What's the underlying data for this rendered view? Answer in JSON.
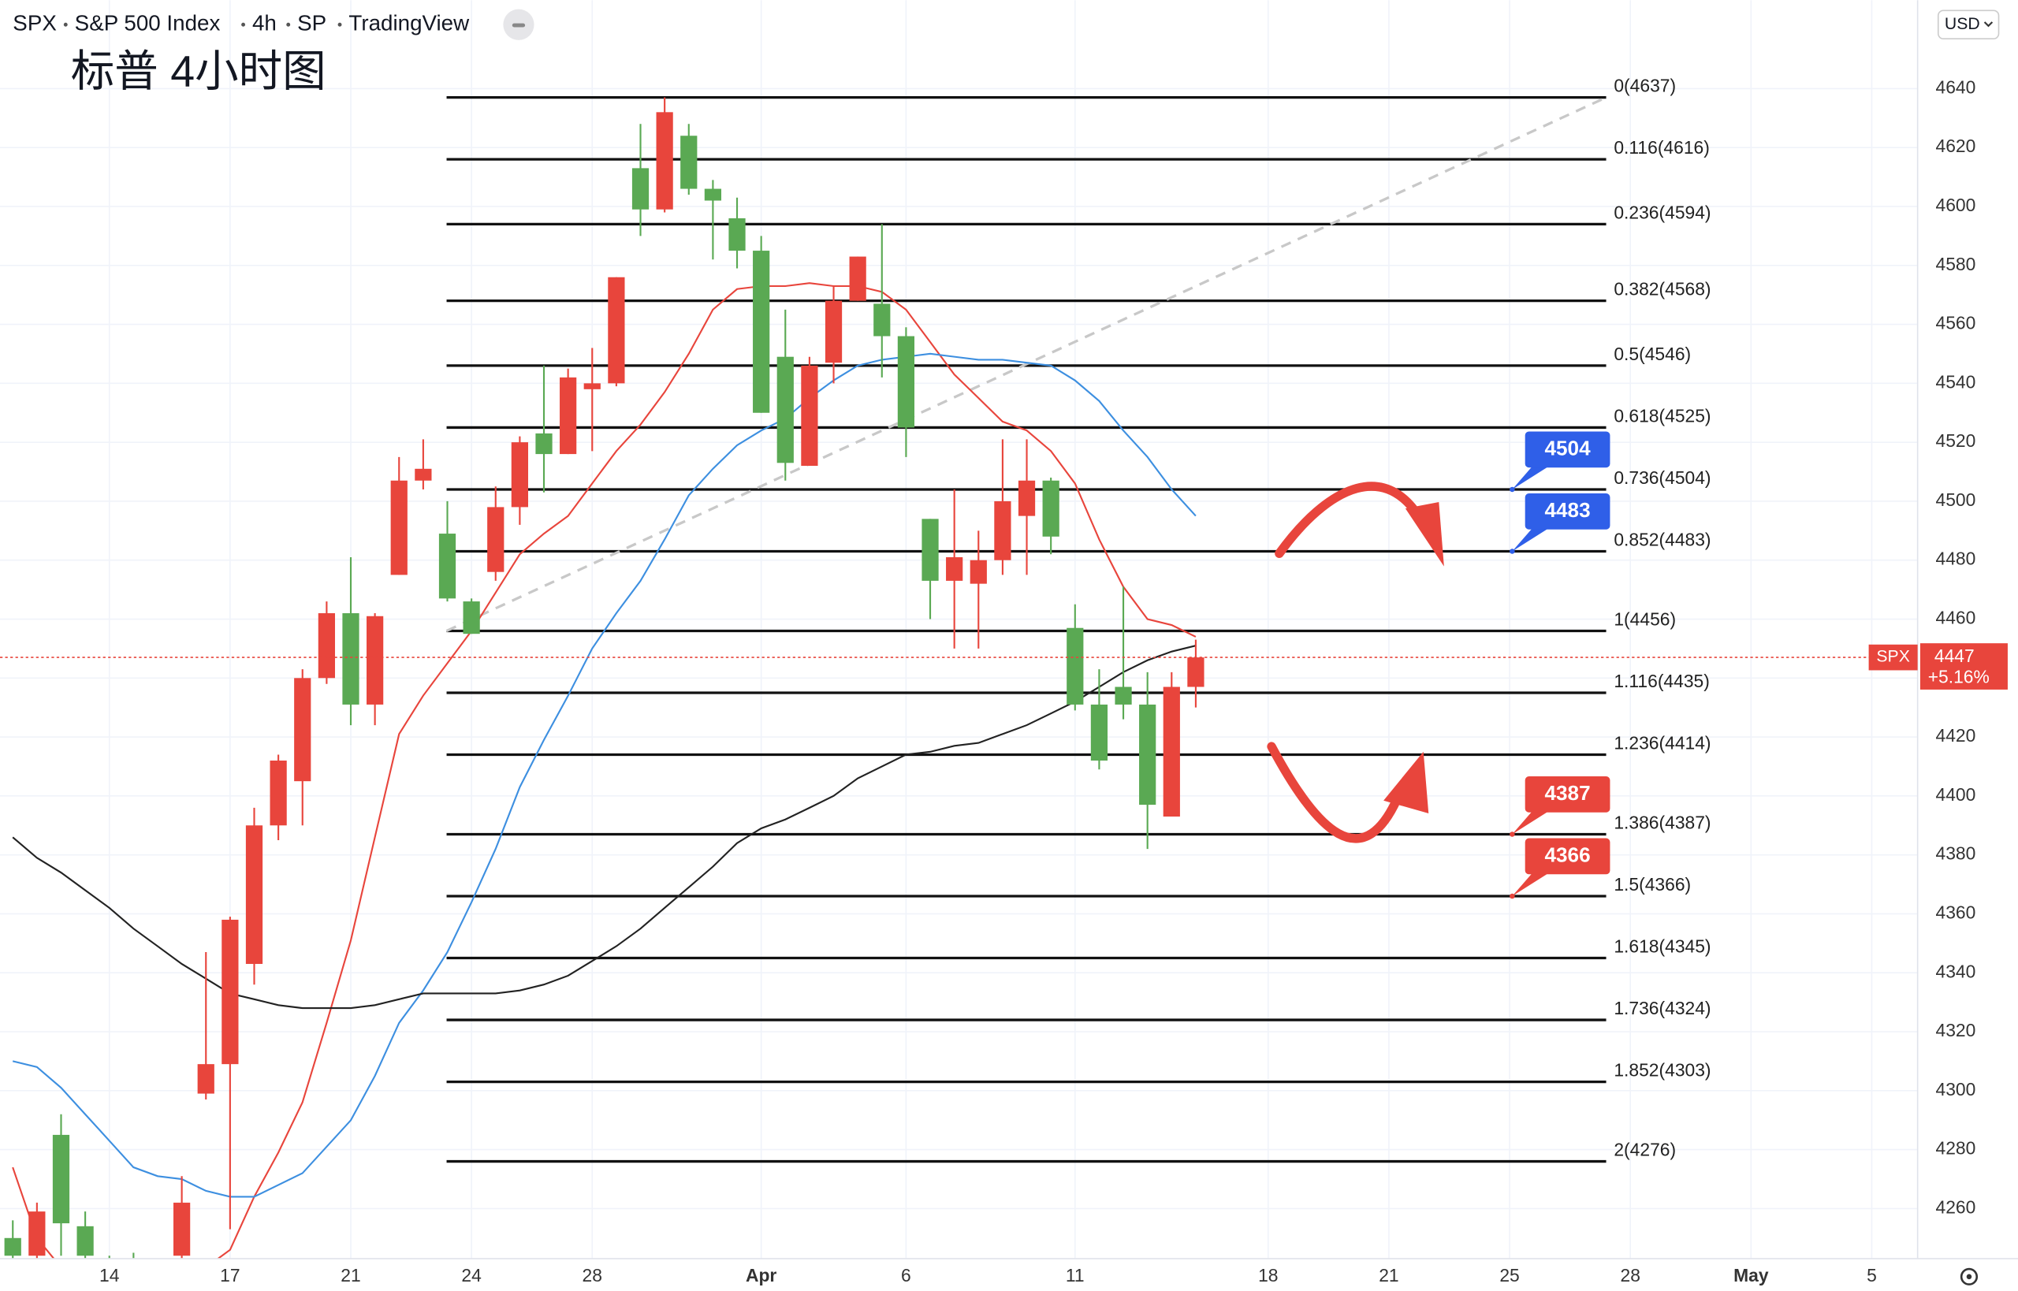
{
  "header": {
    "symbol": "SPX",
    "name": "S&P 500 Index",
    "interval": "4h",
    "exchange": "SP",
    "source": "TradingView",
    "currency": "USD"
  },
  "chart_data": {
    "type": "candlestick",
    "title": "标普 4小时图",
    "open": [
      4250,
      4244,
      4285,
      4254,
      4243,
      4242,
      4241,
      4244,
      4299,
      4309,
      4343,
      4390,
      4405,
      4440,
      4462,
      4431,
      4475,
      4507,
      4489,
      4466,
      4476,
      4498,
      4523,
      4516,
      4538,
      4540,
      4613,
      4599,
      4624,
      4606,
      4596,
      4585,
      4549,
      4512,
      4547,
      4568,
      4567,
      4556,
      4494,
      4473,
      4472,
      4480,
      4495,
      4507,
      4457,
      4431,
      4437,
      4431,
      4393,
      4437
    ],
    "high": [
      4256,
      4262,
      4292,
      4259,
      4244,
      4245,
      4243,
      4271,
      4347,
      4359,
      4396,
      4414,
      4443,
      4466,
      4481,
      4462,
      4515,
      4521,
      4500,
      4467,
      4505,
      4522,
      4546,
      4545,
      4552,
      4576,
      4628,
      4637,
      4628,
      4609,
      4603,
      4590,
      4565,
      4549,
      4573,
      4583,
      4594,
      4559,
      4494,
      4504,
      4490,
      4521,
      4521,
      4508,
      4465,
      4443,
      4471,
      4442,
      4442,
      4453
    ],
    "low": [
      4240,
      4240,
      4244,
      4240,
      4238,
      4238,
      4237,
      4240,
      4297,
      4253,
      4336,
      4385,
      4390,
      4438,
      4424,
      4424,
      4475,
      4504,
      4466,
      4455,
      4473,
      4492,
      4503,
      4516,
      4517,
      4539,
      4590,
      4598,
      4604,
      4582,
      4579,
      4530,
      4507,
      4512,
      4540,
      4568,
      4542,
      4515,
      4460,
      4450,
      4450,
      4475,
      4475,
      4482,
      4429,
      4409,
      4426,
      4382,
      4393,
      4430
    ],
    "close": [
      4244,
      4259,
      4255,
      4244,
      4241,
      4240,
      4239,
      4262,
      4309,
      4358,
      4390,
      4412,
      4440,
      4462,
      4431,
      4461,
      4507,
      4511,
      4467,
      4455,
      4498,
      4520,
      4516,
      4542,
      4540,
      4576,
      4599,
      4632,
      4606,
      4602,
      4585,
      4530,
      4513,
      4546,
      4568,
      4583,
      4556,
      4525,
      4473,
      4481,
      4480,
      4500,
      4507,
      4488,
      4431,
      4412,
      4431,
      4397,
      4437,
      4447
    ],
    "up_color": "#e8453c",
    "down_color": "#5aa953",
    "lines": [
      {
        "color": "#e8453c",
        "values": [
          4274,
          4250,
          4240,
          4234,
          4230,
          4228,
          4228,
          4232,
          4240,
          4246,
          4264,
          4279,
          4296,
          4323,
          4351,
          4386,
          4421,
          4434,
          4445,
          4456,
          4469,
          4482,
          4489,
          4495,
          4506,
          4517,
          4526,
          4537,
          4550,
          4565,
          4572,
          4573,
          4573,
          4574,
          4573,
          4573,
          4571,
          4565,
          4554,
          4543,
          4535,
          4527,
          4524,
          4517,
          4506,
          4487,
          4471,
          4460,
          4458,
          4454
        ]
      },
      {
        "color": "#3d8fe0",
        "values": [
          4310,
          4308,
          4301,
          4292,
          4283,
          4274,
          4271,
          4270,
          4266,
          4264,
          4264,
          4268,
          4272,
          4281,
          4290,
          4305,
          4323,
          4334,
          4347,
          4364,
          4382,
          4403,
          4419,
          4434,
          4450,
          4462,
          4473,
          4487,
          4502,
          4511,
          4519,
          4524,
          4528,
          4535,
          4541,
          4546,
          4548,
          4549,
          4550,
          4549,
          4548,
          4548,
          4547,
          4546,
          4541,
          4534,
          4524,
          4515,
          4504,
          4495
        ]
      },
      {
        "color": "#222222",
        "values": [
          4386,
          4379,
          4374,
          4368,
          4362,
          4355,
          4349,
          4343,
          4338,
          4333,
          4331,
          4329,
          4328,
          4328,
          4328,
          4329,
          4331,
          4333,
          4333,
          4333,
          4333,
          4334,
          4336,
          4339,
          4344,
          4349,
          4355,
          4362,
          4369,
          4376,
          4384,
          4389,
          4392,
          4396,
          4400,
          4406,
          4410,
          4414,
          4415,
          4417,
          4418,
          4421,
          4424,
          4428,
          4432,
          4437,
          4442,
          4446,
          4449,
          4451
        ]
      }
    ],
    "xlim": [
      -0.53,
      78.9
    ],
    "xticks": [
      {
        "value": 4,
        "label": "14"
      },
      {
        "value": 9,
        "label": "17"
      },
      {
        "value": 14,
        "label": "21"
      },
      {
        "value": 19,
        "label": "24"
      },
      {
        "value": 24,
        "label": "28"
      },
      {
        "value": 31,
        "label": "Apr"
      },
      {
        "value": 37,
        "label": "6"
      },
      {
        "value": 44,
        "label": "11"
      },
      {
        "value": 52,
        "label": "18"
      },
      {
        "value": 57,
        "label": "21"
      },
      {
        "value": 62,
        "label": "25"
      },
      {
        "value": 67,
        "label": "28"
      },
      {
        "value": 72,
        "label": "May"
      },
      {
        "value": 77,
        "label": "5"
      }
    ],
    "ylim": [
      4243,
      4670
    ],
    "yticks": [
      4260,
      4280,
      4300,
      4320,
      4340,
      4360,
      4380,
      4400,
      4420,
      4440,
      4460,
      4480,
      4500,
      4520,
      4540,
      4560,
      4580,
      4600,
      4620,
      4640
    ],
    "grid": true,
    "fib_levels": [
      {
        "value": 4637,
        "label": "0(4637)"
      },
      {
        "value": 4616,
        "label": "0.116(4616)"
      },
      {
        "value": 4594,
        "label": "0.236(4594)"
      },
      {
        "value": 4568,
        "label": "0.382(4568)"
      },
      {
        "value": 4546,
        "label": "0.5(4546)"
      },
      {
        "value": 4525,
        "label": "0.618(4525)"
      },
      {
        "value": 4504,
        "label": "0.736(4504)"
      },
      {
        "value": 4483,
        "label": "0.852(4483)"
      },
      {
        "value": 4456,
        "label": "1(4456)"
      },
      {
        "value": 4435,
        "label": "1.116(4435)"
      },
      {
        "value": 4414,
        "label": "1.236(4414)"
      },
      {
        "value": 4387,
        "label": "1.386(4387)"
      },
      {
        "value": 4366,
        "label": "1.5(4366)"
      },
      {
        "value": 4345,
        "label": "1.618(4345)"
      },
      {
        "value": 4324,
        "label": "1.736(4324)"
      },
      {
        "value": 4303,
        "label": "1.852(4303)"
      },
      {
        "value": 4276,
        "label": "2(4276)"
      }
    ],
    "price_tags": [
      {
        "value": 4504,
        "color": "#2f5fe8"
      },
      {
        "value": 4483,
        "color": "#2f5fe8"
      },
      {
        "value": 4387,
        "color": "#e8453c"
      },
      {
        "value": 4366,
        "color": "#e8453c"
      }
    ],
    "last_price": {
      "symbol": "SPX",
      "value": 4447,
      "change": "+5.16%",
      "color": "#e8453c"
    }
  }
}
